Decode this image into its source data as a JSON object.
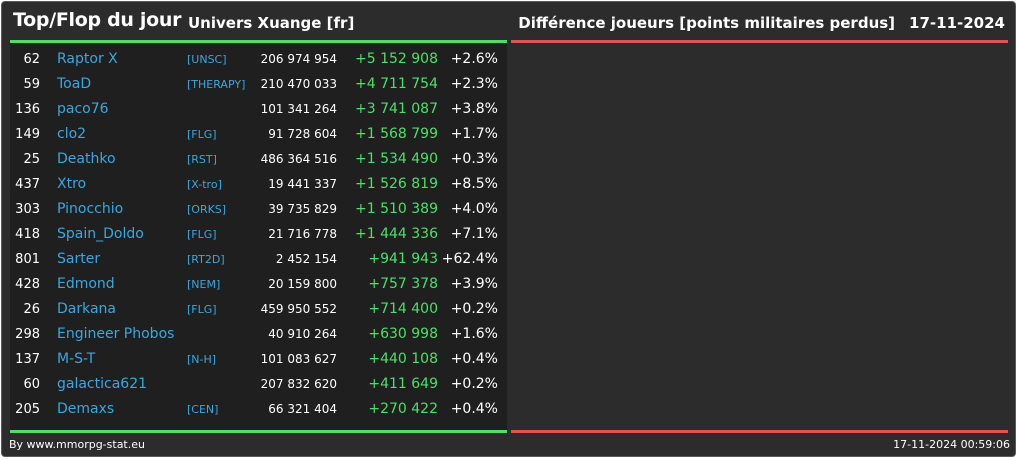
{
  "header": {
    "title": "Top/Flop du jour",
    "universe": "Univers Xuange [fr]",
    "metric": "Différence joueurs [points militaires perdus]",
    "date": "17-11-2024"
  },
  "colors": {
    "background": "#2c2c2c",
    "top_panel": "#1f1f1f",
    "top_accent": "#4be068",
    "flop_accent": "#e8514f",
    "link": "#3aa7e0"
  },
  "top": [
    {
      "rank": "62",
      "name": "Raptor X",
      "alliance": "[UNSC]",
      "points": "206 974 954",
      "diff": "+5 152 908",
      "pct": "+2.6%"
    },
    {
      "rank": "59",
      "name": "ToaD",
      "alliance": "[THERAPY]",
      "points": "210 470 033",
      "diff": "+4 711 754",
      "pct": "+2.3%"
    },
    {
      "rank": "136",
      "name": "paco76",
      "alliance": "",
      "points": "101 341 264",
      "diff": "+3 741 087",
      "pct": "+3.8%"
    },
    {
      "rank": "149",
      "name": "clo2",
      "alliance": "[FLG]",
      "points": "91 728 604",
      "diff": "+1 568 799",
      "pct": "+1.7%"
    },
    {
      "rank": "25",
      "name": "Deathko",
      "alliance": "[RST]",
      "points": "486 364 516",
      "diff": "+1 534 490",
      "pct": "+0.3%"
    },
    {
      "rank": "437",
      "name": "Xtro",
      "alliance": "[X-tro]",
      "points": "19 441 337",
      "diff": "+1 526 819",
      "pct": "+8.5%"
    },
    {
      "rank": "303",
      "name": "Pinocchio",
      "alliance": "[ORKS]",
      "points": "39 735 829",
      "diff": "+1 510 389",
      "pct": "+4.0%"
    },
    {
      "rank": "418",
      "name": "Spain_Doldo",
      "alliance": "[FLG]",
      "points": "21 716 778",
      "diff": "+1 444 336",
      "pct": "+7.1%"
    },
    {
      "rank": "801",
      "name": "Sarter",
      "alliance": "[RT2D]",
      "points": "2 452 154",
      "diff": "+941 943",
      "pct": "+62.4%"
    },
    {
      "rank": "428",
      "name": "Edmond",
      "alliance": "[NEM]",
      "points": "20 159 800",
      "diff": "+757 378",
      "pct": "+3.9%"
    },
    {
      "rank": "26",
      "name": "Darkana",
      "alliance": "[FLG]",
      "points": "459 950 552",
      "diff": "+714 400",
      "pct": "+0.2%"
    },
    {
      "rank": "298",
      "name": "Engineer Phobos",
      "alliance": "",
      "points": "40 910 264",
      "diff": "+630 998",
      "pct": "+1.6%"
    },
    {
      "rank": "137",
      "name": "M-S-T",
      "alliance": "[N-H]",
      "points": "101 083 627",
      "diff": "+440 108",
      "pct": "+0.4%"
    },
    {
      "rank": "60",
      "name": "galactica621",
      "alliance": "",
      "points": "207 832 620",
      "diff": "+411 649",
      "pct": "+0.2%"
    },
    {
      "rank": "205",
      "name": "Demaxs",
      "alliance": "[CEN]",
      "points": "66 321 404",
      "diff": "+270 422",
      "pct": "+0.4%"
    }
  ],
  "flop": [],
  "footer": {
    "credit": "By www.mmorpg-stat.eu",
    "timestamp": "17-11-2024 00:59:06"
  }
}
